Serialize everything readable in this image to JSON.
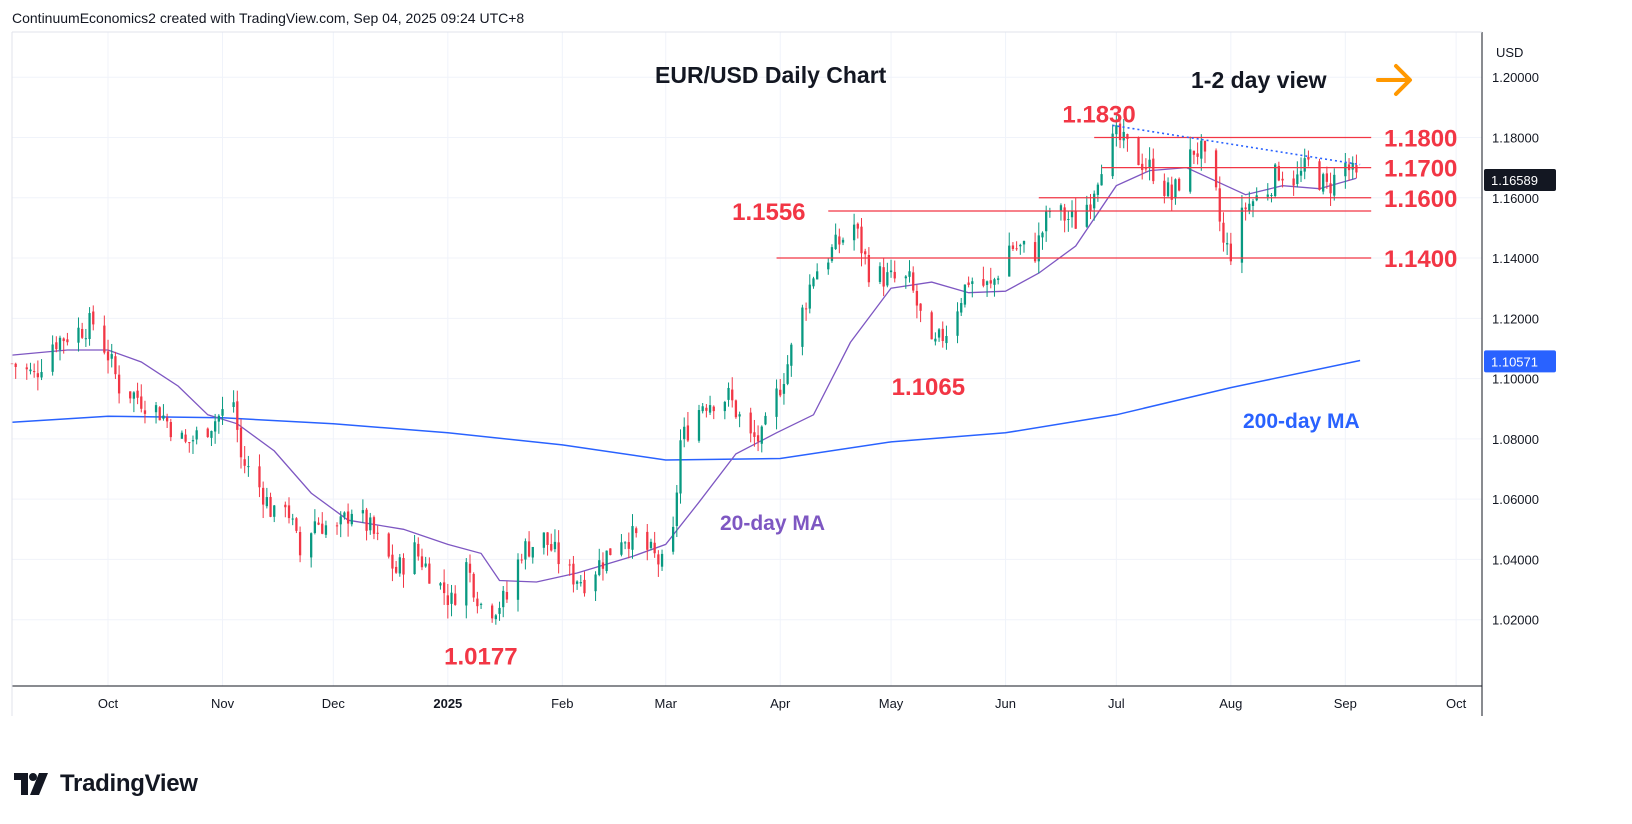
{
  "header": {
    "credit": "ContinuumEconomics2 created with TradingView.com, Sep 04, 2025 09:24 UTC+8"
  },
  "footer": {
    "brand": "TradingView"
  },
  "colors": {
    "up": "#089981",
    "down": "#f23645",
    "ma20": "#7e57c2",
    "ma200": "#2962ff",
    "level": "#f23645",
    "arrow": "#ff9800",
    "last_price_badge": "#131722",
    "ma200_badge": "#2962ff"
  },
  "chart_data": {
    "type": "candlestick",
    "title": "EUR/USD Daily Chart",
    "view_label": "1-2 day view",
    "currency": "USD",
    "yaxis": {
      "ticks": [
        "1.20000",
        "1.18000",
        "1.16000",
        "1.14000",
        "1.12000",
        "1.10000",
        "1.08000",
        "1.06000",
        "1.04000",
        "1.02000"
      ],
      "ylim": [
        0.998,
        1.215
      ]
    },
    "xaxis": {
      "ticks": [
        "Oct",
        "Nov",
        "Dec",
        "2025",
        "Feb",
        "Mar",
        "Apr",
        "May",
        "Jun",
        "Jul",
        "Aug",
        "Sep",
        "Oct"
      ],
      "range": [
        "2024-09-05",
        "2025-10-08"
      ]
    },
    "last_price": "1.16589",
    "ma200_value": "1.10571",
    "key_levels": [
      {
        "label": "1.1800",
        "value": 1.18,
        "from": "2025-06-25"
      },
      {
        "label": "1.1700",
        "value": 1.17,
        "from": "2025-06-27"
      },
      {
        "label": "1.1600",
        "value": 1.16,
        "from": "2025-06-10"
      },
      {
        "label": "",
        "value": 1.1556,
        "from": "2025-04-14"
      },
      {
        "label": "1.1400",
        "value": 1.14,
        "from": "2025-03-31"
      }
    ],
    "annotations": [
      {
        "label": "1.1830",
        "date": "2025-07-01",
        "value": 1.183
      },
      {
        "label": "1.1556",
        "date": "2025-04-21",
        "value": 1.1556
      },
      {
        "label": "1.1065",
        "date": "2025-05-12",
        "value": 1.1065
      },
      {
        "label": "1.0177",
        "date": "2025-01-13",
        "value": 1.0177
      }
    ],
    "series": [
      {
        "name": "20-day MA",
        "type": "line",
        "points": [
          [
            "2024-09-05",
            1.1078
          ],
          [
            "2024-09-20",
            1.1095
          ],
          [
            "2024-10-01",
            1.1095
          ],
          [
            "2024-10-10",
            1.1055
          ],
          [
            "2024-10-20",
            1.0975
          ],
          [
            "2024-10-28",
            1.088
          ],
          [
            "2024-11-05",
            1.085
          ],
          [
            "2024-11-15",
            1.076
          ],
          [
            "2024-11-25",
            1.062
          ],
          [
            "2024-12-05",
            1.053
          ],
          [
            "2024-12-20",
            1.05
          ],
          [
            "2025-01-01",
            1.045
          ],
          [
            "2025-01-10",
            1.042
          ],
          [
            "2025-01-15",
            1.033
          ],
          [
            "2025-01-25",
            1.0325
          ],
          [
            "2025-02-05",
            1.0355
          ],
          [
            "2025-02-20",
            1.041
          ],
          [
            "2025-03-01",
            1.045
          ],
          [
            "2025-03-10",
            1.059
          ],
          [
            "2025-03-20",
            1.075
          ],
          [
            "2025-03-31",
            1.082
          ],
          [
            "2025-04-10",
            1.088
          ],
          [
            "2025-04-20",
            1.112
          ],
          [
            "2025-05-01",
            1.13
          ],
          [
            "2025-05-12",
            1.132
          ],
          [
            "2025-05-22",
            1.1285
          ],
          [
            "2025-06-01",
            1.129
          ],
          [
            "2025-06-10",
            1.135
          ],
          [
            "2025-06-20",
            1.144
          ],
          [
            "2025-07-01",
            1.164
          ],
          [
            "2025-07-10",
            1.169
          ],
          [
            "2025-07-20",
            1.17
          ],
          [
            "2025-07-28",
            1.1655
          ],
          [
            "2025-08-05",
            1.161
          ],
          [
            "2025-08-15",
            1.164
          ],
          [
            "2025-08-25",
            1.163
          ],
          [
            "2025-09-04",
            1.1665
          ]
        ]
      },
      {
        "name": "200-day MA",
        "type": "line",
        "points": [
          [
            "2024-09-05",
            1.0855
          ],
          [
            "2024-10-01",
            1.0875
          ],
          [
            "2024-11-01",
            1.087
          ],
          [
            "2024-12-01",
            1.085
          ],
          [
            "2025-01-01",
            1.082
          ],
          [
            "2025-02-01",
            1.078
          ],
          [
            "2025-03-01",
            1.073
          ],
          [
            "2025-04-01",
            1.0735
          ],
          [
            "2025-05-01",
            1.079
          ],
          [
            "2025-06-01",
            1.082
          ],
          [
            "2025-07-01",
            1.088
          ],
          [
            "2025-08-01",
            1.097
          ],
          [
            "2025-09-05",
            1.106
          ]
        ]
      },
      {
        "name": "trend",
        "type": "dotted",
        "points": [
          [
            "2025-06-30",
            1.184
          ],
          [
            "2025-09-05",
            1.171
          ]
        ]
      },
      {
        "name": "EUR/USD",
        "type": "candles",
        "points": [
          [
            "2024-09-05",
            1.105
          ],
          [
            "2024-09-11",
            1.101
          ],
          [
            "2024-09-16",
            1.112
          ],
          [
            "2024-09-23",
            1.116
          ],
          [
            "2024-09-27",
            1.1185
          ],
          [
            "2024-10-01",
            1.108
          ],
          [
            "2024-10-04",
            1.0975
          ],
          [
            "2024-10-09",
            1.094
          ],
          [
            "2024-10-15",
            1.089
          ],
          [
            "2024-10-22",
            1.078
          ],
          [
            "2024-10-25",
            1.081
          ],
          [
            "2024-11-01",
            1.0885
          ],
          [
            "2024-11-04",
            1.0925
          ],
          [
            "2024-11-06",
            1.0735
          ],
          [
            "2024-11-12",
            1.062
          ],
          [
            "2024-11-15",
            1.054
          ],
          [
            "2024-11-18",
            1.06
          ],
          [
            "2024-11-22",
            1.0415
          ],
          [
            "2024-11-26",
            1.053
          ],
          [
            "2024-12-02",
            1.049
          ],
          [
            "2024-12-06",
            1.057
          ],
          [
            "2024-12-11",
            1.05
          ],
          [
            "2024-12-18",
            1.036
          ],
          [
            "2024-12-23",
            1.043
          ],
          [
            "2025-01-02",
            1.026
          ],
          [
            "2025-01-06",
            1.038
          ],
          [
            "2025-01-10",
            1.025
          ],
          [
            "2025-01-13",
            1.024
          ],
          [
            "2025-01-17",
            1.027
          ],
          [
            "2025-01-21",
            1.043
          ],
          [
            "2025-01-27",
            1.047
          ],
          [
            "2025-02-03",
            1.035
          ],
          [
            "2025-02-07",
            1.033
          ],
          [
            "2025-02-12",
            1.04
          ],
          [
            "2025-02-17",
            1.048
          ],
          [
            "2025-02-21",
            1.047
          ],
          [
            "2025-02-28",
            1.038
          ],
          [
            "2025-03-03",
            1.048
          ],
          [
            "2025-03-05",
            1.079
          ],
          [
            "2025-03-11",
            1.092
          ],
          [
            "2025-03-18",
            1.094
          ],
          [
            "2025-03-24",
            1.08
          ],
          [
            "2025-03-27",
            1.08
          ],
          [
            "2025-04-03",
            1.105
          ],
          [
            "2025-04-10",
            1.135
          ],
          [
            "2025-04-21",
            1.151
          ],
          [
            "2025-04-25",
            1.136
          ],
          [
            "2025-04-30",
            1.133
          ],
          [
            "2025-05-06",
            1.132
          ],
          [
            "2025-05-12",
            1.109
          ],
          [
            "2025-05-16",
            1.116
          ],
          [
            "2025-05-22",
            1.133
          ],
          [
            "2025-05-28",
            1.13
          ],
          [
            "2025-06-02",
            1.144
          ],
          [
            "2025-06-09",
            1.142
          ],
          [
            "2025-06-13",
            1.156
          ],
          [
            "2025-06-20",
            1.152
          ],
          [
            "2025-06-24",
            1.16
          ],
          [
            "2025-06-27",
            1.172
          ],
          [
            "2025-07-01",
            1.18
          ],
          [
            "2025-07-07",
            1.173
          ],
          [
            "2025-07-11",
            1.169
          ],
          [
            "2025-07-16",
            1.16
          ],
          [
            "2025-07-22",
            1.176
          ],
          [
            "2025-07-24",
            1.175
          ],
          [
            "2025-07-28",
            1.16
          ],
          [
            "2025-07-30",
            1.144
          ],
          [
            "2025-08-01",
            1.142
          ],
          [
            "2025-08-05",
            1.157
          ],
          [
            "2025-08-11",
            1.163
          ],
          [
            "2025-08-14",
            1.169
          ],
          [
            "2025-08-19",
            1.166
          ],
          [
            "2025-08-22",
            1.171
          ],
          [
            "2025-08-27",
            1.163
          ],
          [
            "2025-09-01",
            1.171
          ],
          [
            "2025-09-04",
            1.1659
          ]
        ]
      }
    ],
    "ma_labels": [
      "20-day MA",
      "200-day MA"
    ]
  }
}
